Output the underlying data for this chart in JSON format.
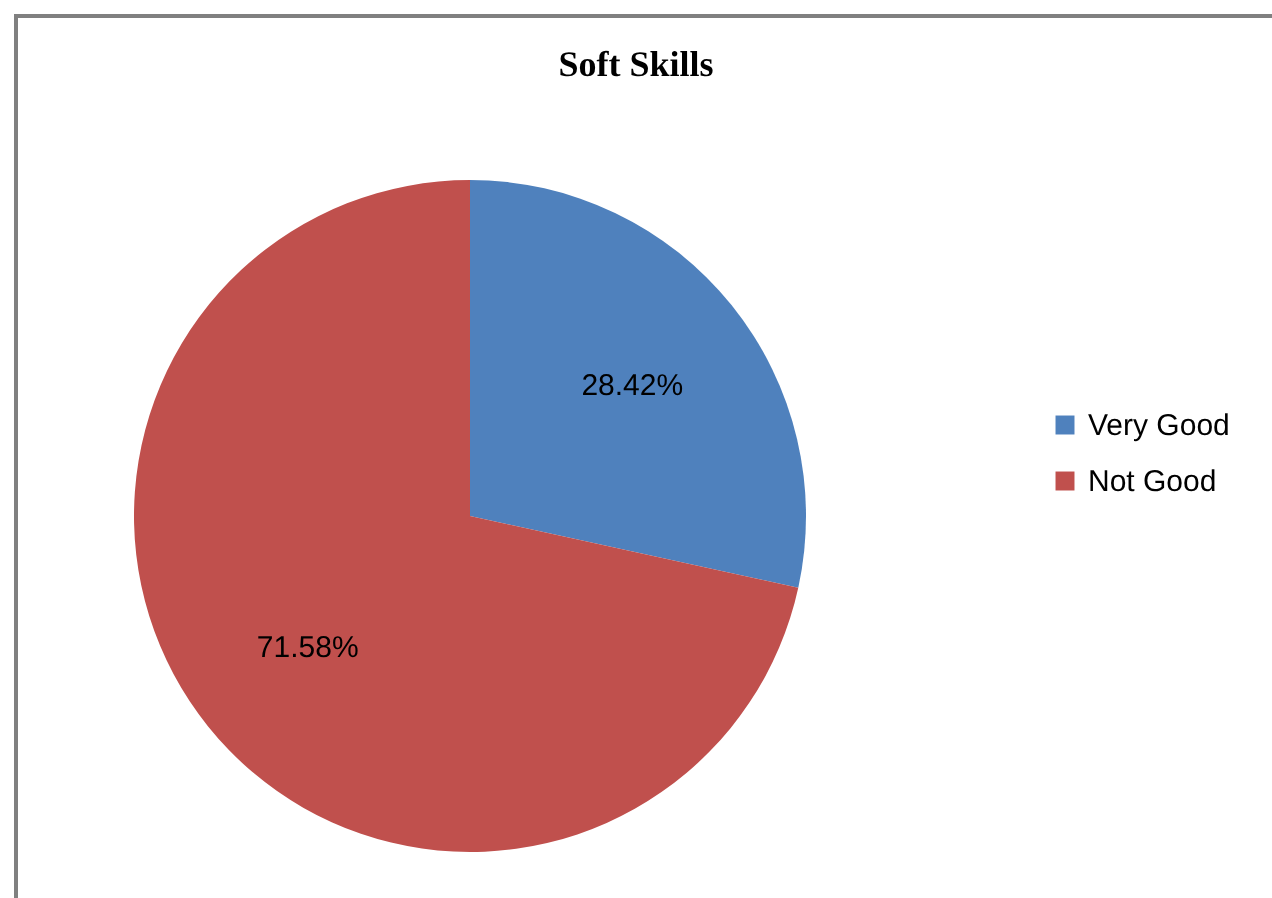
{
  "chart_data": {
    "type": "pie",
    "title": "Soft Skills",
    "categories": [
      "Very Good",
      "Not Good"
    ],
    "values": [
      28.42,
      71.58
    ],
    "colors": [
      "#4f81bd",
      "#c0504d"
    ],
    "value_labels": [
      "28.42%",
      "71.58%"
    ],
    "legend": "right"
  }
}
